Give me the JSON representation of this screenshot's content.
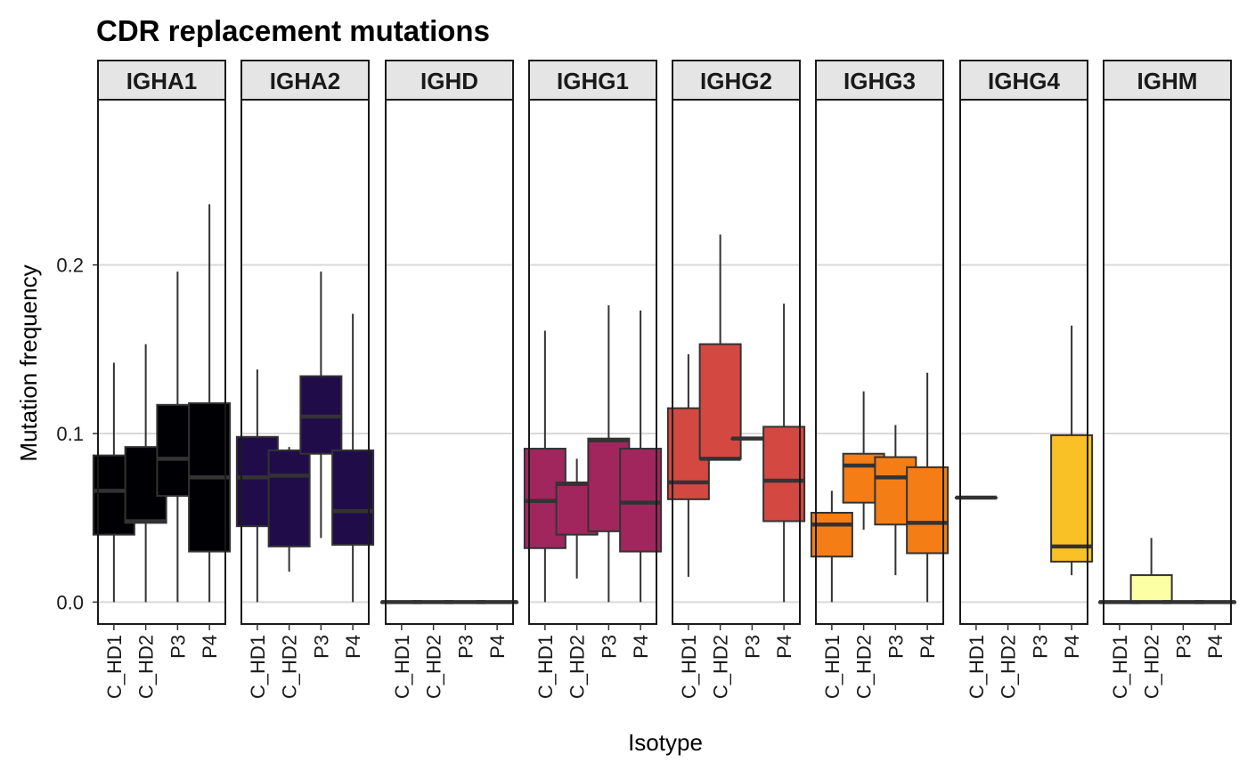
{
  "chart_data": {
    "type": "boxplot",
    "title": "CDR replacement mutations",
    "xlabel": "Isotype",
    "ylabel": "Mutation frequency",
    "ylim": [
      -0.013,
      0.298
    ],
    "y_ticks": [
      0.0,
      0.1,
      0.2
    ],
    "y_tick_labels": [
      "0.0",
      "0.1",
      "0.2"
    ],
    "grid": "horizontal major",
    "legend": "none",
    "categories": [
      "C_HD1",
      "C_HD2",
      "P3",
      "P4"
    ],
    "panels": [
      {
        "name": "IGHA1",
        "color": "#000004",
        "boxes": [
          {
            "category": "C_HD1",
            "min": 0.0,
            "q1": 0.04,
            "median": 0.066,
            "q3": 0.087,
            "max": 0.142
          },
          {
            "category": "C_HD2",
            "min": 0.0,
            "q1": 0.047,
            "median": 0.048,
            "q3": 0.092,
            "max": 0.153
          },
          {
            "category": "P3",
            "min": 0.0,
            "q1": 0.063,
            "median": 0.085,
            "q3": 0.117,
            "max": 0.196
          },
          {
            "category": "P4",
            "min": 0.0,
            "q1": 0.03,
            "median": 0.074,
            "q3": 0.118,
            "max": 0.236
          }
        ]
      },
      {
        "name": "IGHA2",
        "color": "#210c4a",
        "boxes": [
          {
            "category": "C_HD1",
            "min": 0.0,
            "q1": 0.045,
            "median": 0.074,
            "q3": 0.098,
            "max": 0.138
          },
          {
            "category": "C_HD2",
            "min": 0.018,
            "q1": 0.033,
            "median": 0.075,
            "q3": 0.09,
            "max": 0.092
          },
          {
            "category": "P3",
            "min": 0.038,
            "q1": 0.088,
            "median": 0.11,
            "q3": 0.134,
            "max": 0.196
          },
          {
            "category": "P4",
            "min": 0.0,
            "q1": 0.034,
            "median": 0.054,
            "q3": 0.09,
            "max": 0.171
          }
        ]
      },
      {
        "name": "IGHD",
        "color": "#56106e",
        "boxes": [
          {
            "category": "C_HD1",
            "min": 0.0,
            "q1": 0.0,
            "median": 0.0,
            "q3": 0.0,
            "max": 0.0
          },
          {
            "category": "C_HD2",
            "min": 0.0,
            "q1": 0.0,
            "median": 0.0,
            "q3": 0.0,
            "max": 0.0
          },
          {
            "category": "P3",
            "min": 0.0,
            "q1": 0.0,
            "median": 0.0,
            "q3": 0.0,
            "max": 0.0
          },
          {
            "category": "P4",
            "min": 0.0,
            "q1": 0.0,
            "median": 0.0,
            "q3": 0.0,
            "max": 0.0
          }
        ]
      },
      {
        "name": "IGHG1",
        "color": "#a1265e",
        "boxes": [
          {
            "category": "C_HD1",
            "min": 0.0,
            "q1": 0.032,
            "median": 0.06,
            "q3": 0.091,
            "max": 0.161
          },
          {
            "category": "C_HD2",
            "min": 0.014,
            "q1": 0.04,
            "median": 0.07,
            "q3": 0.071,
            "max": 0.085
          },
          {
            "category": "P3",
            "min": 0.0,
            "q1": 0.042,
            "median": 0.096,
            "q3": 0.097,
            "max": 0.176
          },
          {
            "category": "P4",
            "min": 0.0,
            "q1": 0.03,
            "median": 0.059,
            "q3": 0.091,
            "max": 0.173
          }
        ]
      },
      {
        "name": "IGHG2",
        "color": "#d44842",
        "boxes": [
          {
            "category": "C_HD1",
            "min": 0.015,
            "q1": 0.061,
            "median": 0.071,
            "q3": 0.115,
            "max": 0.147
          },
          {
            "category": "C_HD2",
            "min": 0.084,
            "q1": 0.085,
            "median": 0.085,
            "q3": 0.153,
            "max": 0.218
          },
          {
            "category": "P3",
            "min": 0.097,
            "q1": 0.097,
            "median": 0.097,
            "q3": 0.097,
            "max": 0.097
          },
          {
            "category": "P4",
            "min": 0.0,
            "q1": 0.048,
            "median": 0.072,
            "q3": 0.104,
            "max": 0.177
          }
        ]
      },
      {
        "name": "IGHG3",
        "color": "#f57d15",
        "boxes": [
          {
            "category": "C_HD1",
            "min": 0.0,
            "q1": 0.027,
            "median": 0.046,
            "q3": 0.053,
            "max": 0.066
          },
          {
            "category": "C_HD2",
            "min": 0.043,
            "q1": 0.059,
            "median": 0.081,
            "q3": 0.088,
            "max": 0.125
          },
          {
            "category": "P3",
            "min": 0.016,
            "q1": 0.046,
            "median": 0.074,
            "q3": 0.086,
            "max": 0.105
          },
          {
            "category": "P4",
            "min": 0.0,
            "q1": 0.029,
            "median": 0.047,
            "q3": 0.08,
            "max": 0.136
          }
        ]
      },
      {
        "name": "IGHG4",
        "color": "#fac127",
        "boxes": [
          {
            "category": "C_HD1",
            "min": 0.062,
            "q1": 0.062,
            "median": 0.062,
            "q3": 0.062,
            "max": 0.062
          },
          {
            "category": "P4",
            "min": 0.016,
            "q1": 0.024,
            "median": 0.033,
            "q3": 0.099,
            "max": 0.164
          }
        ]
      },
      {
        "name": "IGHM",
        "color": "#fcffa4",
        "boxes": [
          {
            "category": "C_HD1",
            "min": 0.0,
            "q1": 0.0,
            "median": 0.0,
            "q3": 0.0,
            "max": 0.0
          },
          {
            "category": "C_HD2",
            "min": 0.0,
            "q1": 0.0,
            "median": 0.0,
            "q3": 0.016,
            "max": 0.038
          },
          {
            "category": "P3",
            "min": 0.0,
            "q1": 0.0,
            "median": 0.0,
            "q3": 0.0,
            "max": 0.0
          },
          {
            "category": "P4",
            "min": 0.0,
            "q1": 0.0,
            "median": 0.0,
            "q3": 0.0,
            "max": 0.0
          }
        ]
      }
    ]
  }
}
